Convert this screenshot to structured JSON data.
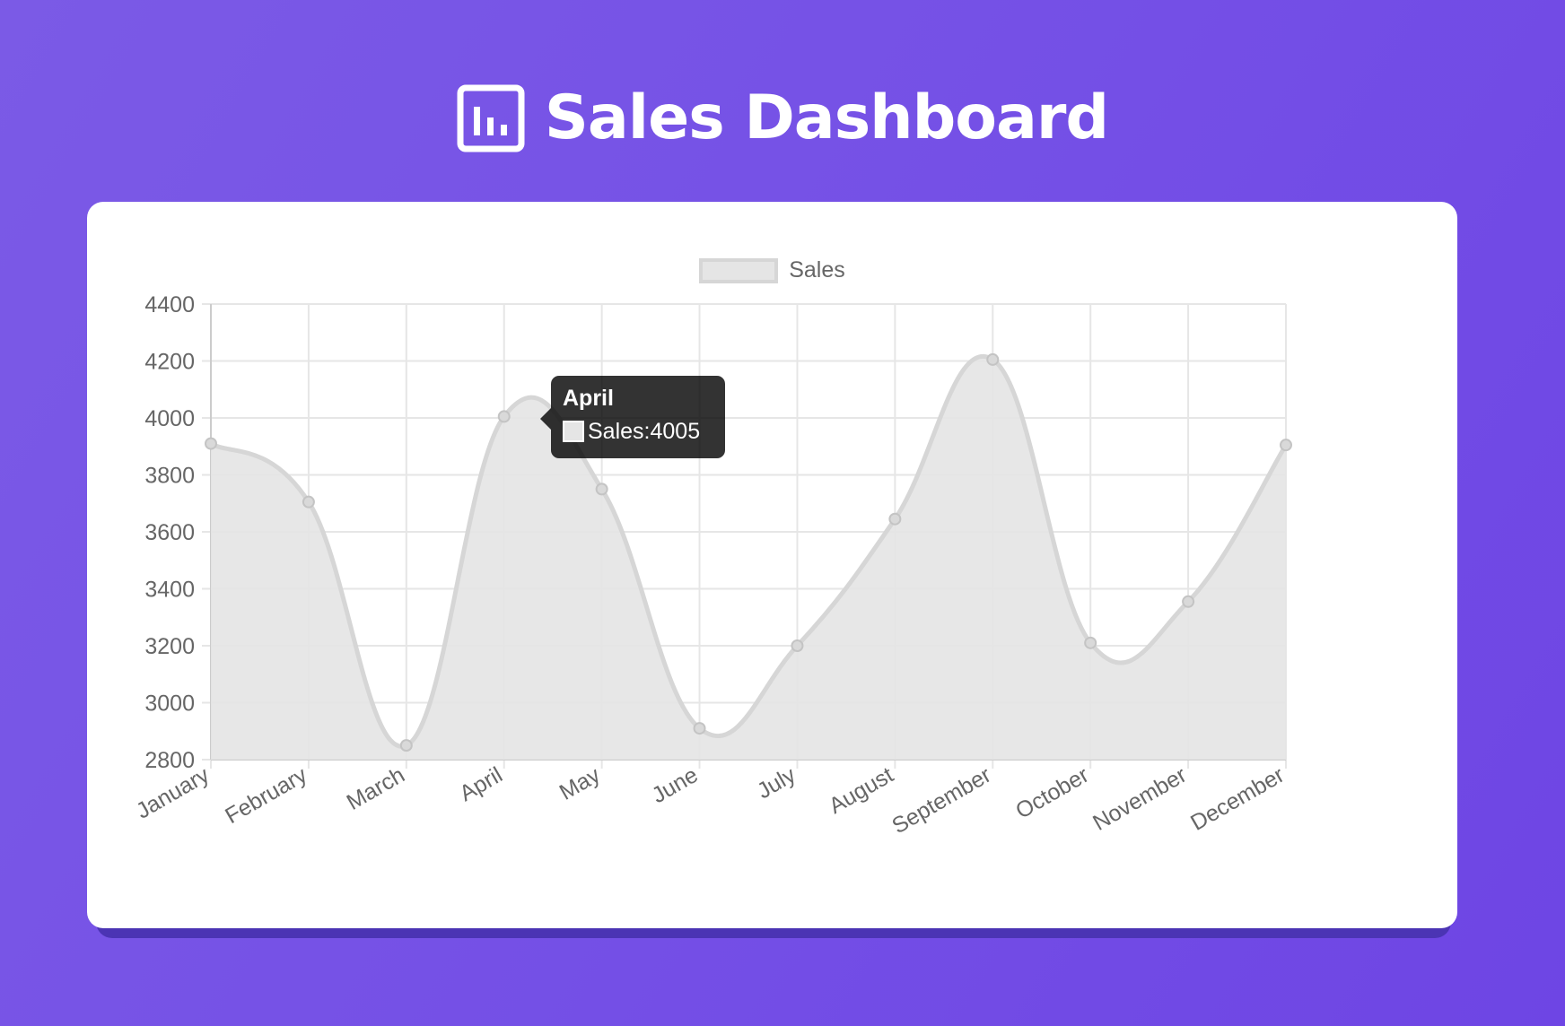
{
  "header": {
    "title": "Sales Dashboard",
    "icon": "bar-chart-icon"
  },
  "colors": {
    "background_start": "#7b5ae6",
    "background_end": "#6e45e4",
    "card": "#ffffff",
    "series_fill": "#e5e5e5",
    "series_line": "#d6d6d6",
    "grid": "#e6e6e6",
    "tick_text": "#666666",
    "tooltip_bg": "#000000cc"
  },
  "tooltip": {
    "title": "April",
    "series": "Sales",
    "value": "4005"
  },
  "chart_data": {
    "type": "line",
    "fill": true,
    "smooth": true,
    "categories": [
      "January",
      "February",
      "March",
      "April",
      "May",
      "June",
      "July",
      "August",
      "September",
      "October",
      "November",
      "December"
    ],
    "series": [
      {
        "name": "Sales",
        "values": [
          3910,
          3705,
          2850,
          4005,
          3750,
          2910,
          3200,
          3645,
          4205,
          3210,
          3355,
          3905
        ]
      }
    ],
    "ylim": [
      2800,
      4400
    ],
    "yticks": [
      4400,
      4200,
      4000,
      3800,
      3600,
      3400,
      3200,
      3000,
      2800
    ],
    "grid": true,
    "legend_position": "top-center",
    "x_tick_rotation": -30
  }
}
